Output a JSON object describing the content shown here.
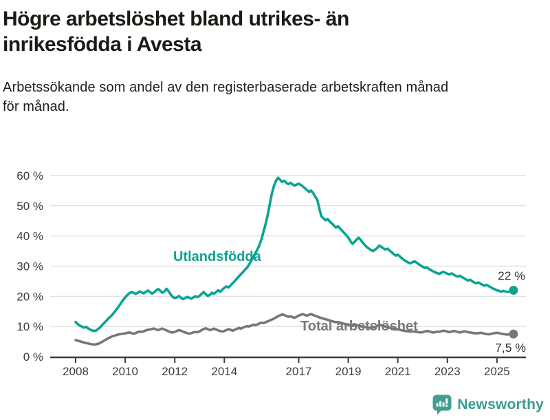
{
  "header": {
    "title_line1": "Högre arbetslöshet bland utrikes- än",
    "title_line2": "inrikesfödda i Avesta",
    "subtitle_line1": "Arbetssökande som andel av den registerbaserade arbetskraften månad",
    "subtitle_line2": "för månad."
  },
  "chart_data": {
    "type": "line",
    "x_interval": "monthly",
    "x_start_year": 2008,
    "x_start_month": 1,
    "x_end": "2025-09",
    "x_ticks": [
      2008,
      2010,
      2012,
      2014,
      2017,
      2019,
      2021,
      2023,
      2025
    ],
    "x_tick_labels": [
      "2008",
      "2010",
      "2012",
      "2014",
      "2017",
      "2019",
      "2021",
      "2023",
      "2025"
    ],
    "y_ticks": [
      0,
      10,
      20,
      30,
      40,
      50,
      60
    ],
    "y_tick_labels": [
      "0 %",
      "10 %",
      "20 %",
      "30 %",
      "40 %",
      "50 %",
      "60 %"
    ],
    "ylim": [
      0,
      62
    ],
    "grid": "horizontal",
    "axis_color": "#3c3c3c",
    "grid_color": "#dcdcdc",
    "series": [
      {
        "name": "Utlandsfödda",
        "color": "#0aa394",
        "end_label": "22 %",
        "end_value": 22,
        "values": [
          11.5,
          10.8,
          10.3,
          10.0,
          9.6,
          9.9,
          9.4,
          9.0,
          8.7,
          8.5,
          8.7,
          9.2,
          9.8,
          10.6,
          11.3,
          12.0,
          12.8,
          13.3,
          14.1,
          15.0,
          15.8,
          16.8,
          17.8,
          18.8,
          19.6,
          20.4,
          21.0,
          21.4,
          21.2,
          20.8,
          21.1,
          21.6,
          21.3,
          21.0,
          21.5,
          21.9,
          21.4,
          20.9,
          21.3,
          22.0,
          22.4,
          21.8,
          21.2,
          21.6,
          22.5,
          21.7,
          20.6,
          19.8,
          19.4,
          19.6,
          20.1,
          19.5,
          19.1,
          19.4,
          19.8,
          19.5,
          19.2,
          19.6,
          20.0,
          19.7,
          20.2,
          20.8,
          21.4,
          20.7,
          20.1,
          20.5,
          21.2,
          20.8,
          21.4,
          22.0,
          21.5,
          22.2,
          22.8,
          23.3,
          22.9,
          23.6,
          24.3,
          25.0,
          25.8,
          26.5,
          27.3,
          28.0,
          28.8,
          29.5,
          30.5,
          31.8,
          33.0,
          34.3,
          35.5,
          37.0,
          39.0,
          41.5,
          44.0,
          47.0,
          50.5,
          54.0,
          56.5,
          58.3,
          59.3,
          58.6,
          57.9,
          58.3,
          57.6,
          57.2,
          57.6,
          57.1,
          56.7,
          57.0,
          57.3,
          56.9,
          56.4,
          55.8,
          55.2,
          54.6,
          55.0,
          54.2,
          53.0,
          52.0,
          49.0,
          46.5,
          45.8,
          45.2,
          45.6,
          44.8,
          44.2,
          43.5,
          42.8,
          43.2,
          42.5,
          41.8,
          41.0,
          40.3,
          39.5,
          38.3,
          37.4,
          38.0,
          38.8,
          39.4,
          38.7,
          37.8,
          37.0,
          36.3,
          35.8,
          35.3,
          35.0,
          35.4,
          36.0,
          36.8,
          36.4,
          35.9,
          35.5,
          35.8,
          35.2,
          34.6,
          34.0,
          33.5,
          33.8,
          33.2,
          32.6,
          32.0,
          31.6,
          31.2,
          30.9,
          31.3,
          31.6,
          31.2,
          30.7,
          30.2,
          29.8,
          29.4,
          29.6,
          29.1,
          28.7,
          28.3,
          28.0,
          27.7,
          27.4,
          27.8,
          28.1,
          27.8,
          27.5,
          27.2,
          27.6,
          27.2,
          26.8,
          26.5,
          26.8,
          26.4,
          26.0,
          25.6,
          25.2,
          25.5,
          25.0,
          24.6,
          24.3,
          24.6,
          24.2,
          23.8,
          23.5,
          23.8,
          23.4,
          23.0,
          22.6,
          22.3,
          22.0,
          21.8,
          21.5,
          21.8,
          21.6,
          21.4,
          21.6,
          21.8,
          22.0
        ]
      },
      {
        "name": "Total arbetslöshet",
        "color": "#77777a",
        "end_label": "7,5 %",
        "end_value": 7.5,
        "values": [
          5.5,
          5.3,
          5.1,
          4.9,
          4.7,
          4.5,
          4.4,
          4.2,
          4.1,
          4.0,
          4.1,
          4.3,
          4.6,
          5.0,
          5.4,
          5.8,
          6.2,
          6.5,
          6.8,
          7.0,
          7.2,
          7.4,
          7.5,
          7.6,
          7.7,
          7.9,
          8.0,
          7.8,
          7.6,
          7.8,
          8.1,
          8.3,
          8.2,
          8.4,
          8.7,
          8.9,
          9.0,
          9.2,
          9.3,
          9.0,
          8.8,
          9.1,
          9.3,
          9.0,
          8.7,
          8.4,
          8.1,
          8.0,
          8.2,
          8.5,
          8.8,
          8.6,
          8.3,
          8.0,
          7.8,
          7.6,
          7.8,
          8.0,
          8.2,
          8.1,
          8.4,
          8.8,
          9.2,
          9.4,
          9.1,
          8.8,
          9.0,
          9.3,
          9.0,
          8.7,
          8.5,
          8.3,
          8.5,
          8.8,
          9.1,
          8.9,
          8.6,
          8.9,
          9.2,
          9.5,
          9.3,
          9.6,
          9.9,
          10.1,
          10.0,
          10.3,
          10.6,
          10.4,
          10.7,
          11.0,
          11.3,
          11.1,
          11.4,
          11.7,
          12.0,
          12.3,
          12.6,
          13.0,
          13.4,
          13.7,
          14.0,
          13.8,
          13.5,
          13.2,
          13.4,
          13.1,
          12.9,
          13.2,
          13.6,
          13.9,
          14.1,
          13.8,
          13.6,
          13.9,
          14.1,
          13.8,
          13.5,
          13.3,
          13.0,
          12.8,
          12.6,
          12.4,
          12.2,
          12.0,
          11.8,
          11.6,
          11.4,
          11.5,
          11.3,
          11.1,
          10.9,
          10.7,
          10.5,
          10.3,
          10.2,
          10.4,
          10.5,
          10.3,
          10.1,
          9.9,
          9.8,
          9.7,
          9.6,
          9.5,
          9.6,
          9.8,
          10.2,
          10.6,
          10.4,
          10.2,
          10.0,
          9.8,
          9.6,
          9.4,
          9.2,
          9.0,
          9.1,
          8.9,
          8.7,
          8.6,
          8.5,
          8.4,
          8.3,
          8.4,
          8.3,
          8.2,
          8.1,
          8.0,
          8.1,
          8.3,
          8.5,
          8.4,
          8.2,
          8.0,
          8.1,
          8.3,
          8.2,
          8.4,
          8.6,
          8.5,
          8.3,
          8.1,
          8.3,
          8.5,
          8.4,
          8.2,
          8.0,
          8.2,
          8.4,
          8.3,
          8.1,
          8.0,
          7.9,
          7.8,
          7.7,
          7.8,
          7.9,
          7.8,
          7.6,
          7.5,
          7.4,
          7.5,
          7.7,
          7.8,
          7.9,
          7.8,
          7.6,
          7.5,
          7.4,
          7.3,
          7.4,
          7.5,
          7.5
        ]
      }
    ]
  },
  "footer": {
    "brand": "Newsworthy",
    "brand_color": "#3a9c8e",
    "logo_color": "#429e92"
  }
}
